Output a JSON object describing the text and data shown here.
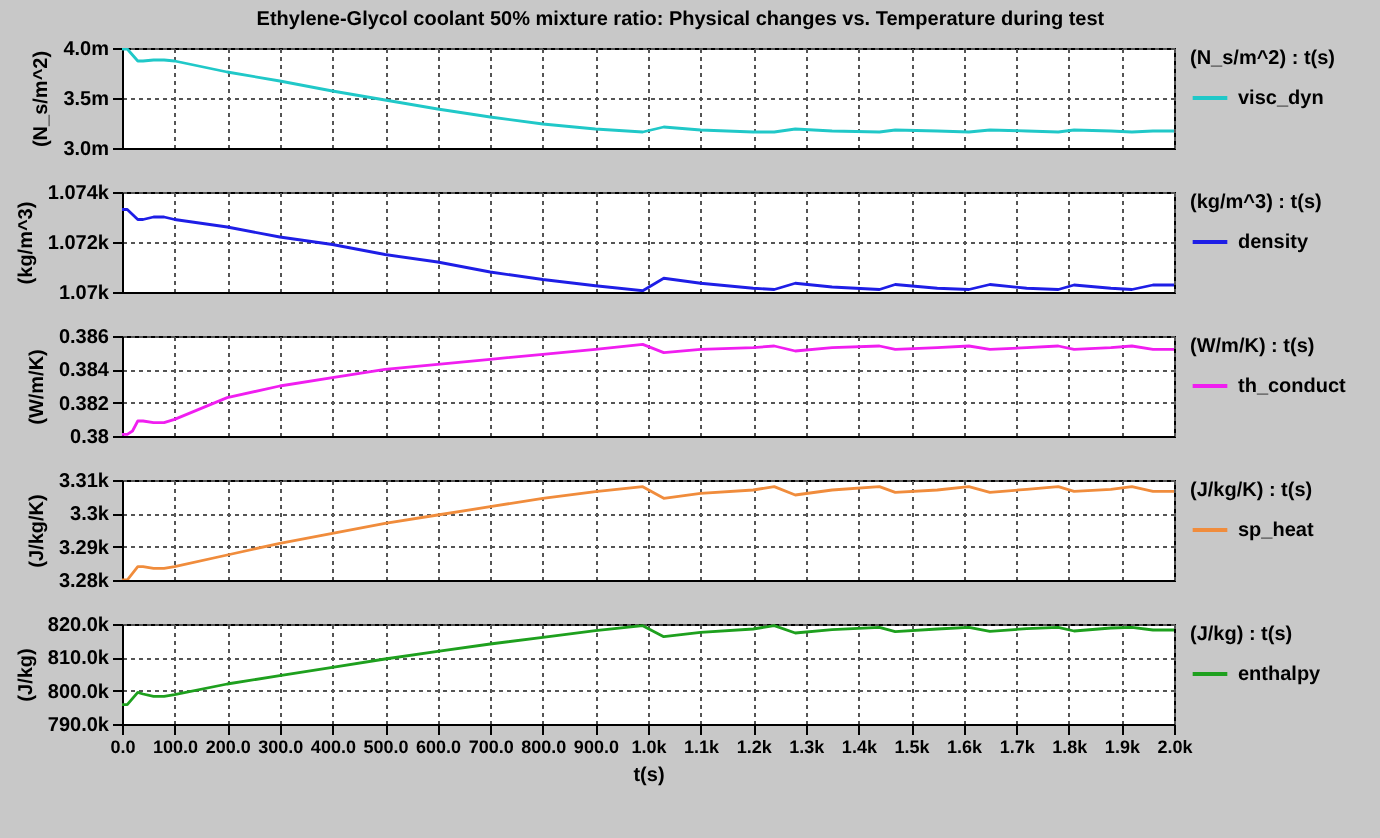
{
  "chart_data": [
    {
      "type": "line",
      "title": "Ethylene-Glycol coolant 50% mixture ratio: Physical changes vs. Temperature during test",
      "ylabel": "(N_s/m^2)",
      "legend_title": "(N_s/m^2) : t(s)",
      "legend": "right",
      "grid": true,
      "tick_labels": "y",
      "x": [
        0,
        10,
        30,
        40,
        60,
        80,
        100,
        200,
        300,
        400,
        500,
        600,
        700,
        800,
        900,
        990,
        1030,
        1100,
        1200,
        1240,
        1280,
        1350,
        1440,
        1470,
        1550,
        1610,
        1650,
        1720,
        1780,
        1810,
        1880,
        1920,
        1960,
        2000
      ],
      "xlim": [
        0,
        2000
      ],
      "xticks": [
        {
          "value": 0,
          "label": null
        },
        {
          "value": 100,
          "label": null
        },
        {
          "value": 200,
          "label": null
        },
        {
          "value": 300,
          "label": null
        },
        {
          "value": 400,
          "label": null
        },
        {
          "value": 500,
          "label": null
        },
        {
          "value": 600,
          "label": null
        },
        {
          "value": 700,
          "label": null
        },
        {
          "value": 800,
          "label": null
        },
        {
          "value": 900,
          "label": null
        },
        {
          "value": 1000,
          "label": null
        },
        {
          "value": 1100,
          "label": null
        },
        {
          "value": 1200,
          "label": null
        },
        {
          "value": 1300,
          "label": null
        },
        {
          "value": 1400,
          "label": null
        },
        {
          "value": 1500,
          "label": null
        },
        {
          "value": 1600,
          "label": null
        },
        {
          "value": 1700,
          "label": null
        },
        {
          "value": 1800,
          "label": null
        },
        {
          "value": 1900,
          "label": null
        },
        {
          "value": 2000,
          "label": null
        }
      ],
      "ylim": [
        3.0,
        4.0
      ],
      "yticks": [
        {
          "value": 3.0,
          "label": "3.0m"
        },
        {
          "value": 3.5,
          "label": "3.5m"
        },
        {
          "value": 4.0,
          "label": "4.0m"
        }
      ],
      "series": [
        {
          "name": "visc_dyn",
          "color": "#20c8c8",
          "values": [
            3.99,
            3.99,
            3.87,
            3.87,
            3.88,
            3.88,
            3.87,
            3.76,
            3.67,
            3.57,
            3.48,
            3.39,
            3.31,
            3.24,
            3.19,
            3.16,
            3.21,
            3.18,
            3.16,
            3.16,
            3.19,
            3.17,
            3.16,
            3.18,
            3.17,
            3.16,
            3.18,
            3.17,
            3.16,
            3.18,
            3.17,
            3.16,
            3.17,
            3.17
          ]
        }
      ]
    },
    {
      "type": "line",
      "ylabel": "(kg/m^3)",
      "legend_title": "(kg/m^3) : t(s)",
      "legend": "right",
      "grid": true,
      "tick_labels": "y",
      "x": [
        0,
        10,
        30,
        40,
        60,
        80,
        100,
        200,
        300,
        400,
        500,
        600,
        700,
        800,
        900,
        990,
        1030,
        1100,
        1200,
        1240,
        1280,
        1350,
        1440,
        1470,
        1550,
        1610,
        1650,
        1720,
        1780,
        1810,
        1880,
        1920,
        1960,
        2000
      ],
      "xlim": [
        0,
        2000
      ],
      "xticks": [
        {
          "value": 0,
          "label": null
        },
        {
          "value": 100,
          "label": null
        },
        {
          "value": 200,
          "label": null
        },
        {
          "value": 300,
          "label": null
        },
        {
          "value": 400,
          "label": null
        },
        {
          "value": 500,
          "label": null
        },
        {
          "value": 600,
          "label": null
        },
        {
          "value": 700,
          "label": null
        },
        {
          "value": 800,
          "label": null
        },
        {
          "value": 900,
          "label": null
        },
        {
          "value": 1000,
          "label": null
        },
        {
          "value": 1100,
          "label": null
        },
        {
          "value": 1200,
          "label": null
        },
        {
          "value": 1300,
          "label": null
        },
        {
          "value": 1400,
          "label": null
        },
        {
          "value": 1500,
          "label": null
        },
        {
          "value": 1600,
          "label": null
        },
        {
          "value": 1700,
          "label": null
        },
        {
          "value": 1800,
          "label": null
        },
        {
          "value": 1900,
          "label": null
        },
        {
          "value": 2000,
          "label": null
        }
      ],
      "ylim": [
        1070,
        1074
      ],
      "yticks": [
        {
          "value": 1070,
          "label": "1.07k"
        },
        {
          "value": 1072,
          "label": "1.072k"
        },
        {
          "value": 1074,
          "label": "1.074k"
        }
      ],
      "series": [
        {
          "name": "density",
          "color": "#1e1ee6",
          "values": [
            1073.3,
            1073.3,
            1072.9,
            1072.9,
            1073.0,
            1073.0,
            1072.9,
            1072.6,
            1072.2,
            1071.9,
            1071.5,
            1071.2,
            1070.8,
            1070.5,
            1070.25,
            1070.05,
            1070.55,
            1070.35,
            1070.15,
            1070.1,
            1070.35,
            1070.2,
            1070.1,
            1070.3,
            1070.15,
            1070.1,
            1070.3,
            1070.15,
            1070.1,
            1070.28,
            1070.15,
            1070.1,
            1070.28,
            1070.28
          ]
        }
      ]
    },
    {
      "type": "line",
      "ylabel": "(W/m/K)",
      "legend_title": "(W/m/K) : t(s)",
      "legend": "right",
      "grid": true,
      "tick_labels": "y",
      "x": [
        0,
        10,
        20,
        30,
        40,
        60,
        80,
        100,
        200,
        300,
        400,
        500,
        600,
        700,
        800,
        900,
        990,
        1030,
        1100,
        1200,
        1240,
        1280,
        1350,
        1440,
        1470,
        1550,
        1610,
        1650,
        1720,
        1780,
        1810,
        1880,
        1920,
        1960,
        2000
      ],
      "xlim": [
        0,
        2000
      ],
      "xticks": [
        {
          "value": 0,
          "label": null
        },
        {
          "value": 100,
          "label": null
        },
        {
          "value": 200,
          "label": null
        },
        {
          "value": 300,
          "label": null
        },
        {
          "value": 400,
          "label": null
        },
        {
          "value": 500,
          "label": null
        },
        {
          "value": 600,
          "label": null
        },
        {
          "value": 700,
          "label": null
        },
        {
          "value": 800,
          "label": null
        },
        {
          "value": 900,
          "label": null
        },
        {
          "value": 1000,
          "label": null
        },
        {
          "value": 1100,
          "label": null
        },
        {
          "value": 1200,
          "label": null
        },
        {
          "value": 1300,
          "label": null
        },
        {
          "value": 1400,
          "label": null
        },
        {
          "value": 1500,
          "label": null
        },
        {
          "value": 1600,
          "label": null
        },
        {
          "value": 1700,
          "label": null
        },
        {
          "value": 1800,
          "label": null
        },
        {
          "value": 1900,
          "label": null
        },
        {
          "value": 2000,
          "label": null
        }
      ],
      "ylim": [
        0.38,
        0.386
      ],
      "yticks": [
        0.38,
        0.382,
        0.384,
        0.386
      ],
      "series": [
        {
          "name": "th_conduct",
          "color": "#f01ef0",
          "values": [
            0.3801,
            0.3801,
            0.3803,
            0.3809,
            0.3809,
            0.3808,
            0.3808,
            0.381,
            0.3823,
            0.383,
            0.3835,
            0.384,
            0.3843,
            0.3846,
            0.3849,
            0.3852,
            0.3855,
            0.385,
            0.3852,
            0.3853,
            0.3854,
            0.3851,
            0.3853,
            0.3854,
            0.3852,
            0.3853,
            0.3854,
            0.3852,
            0.3853,
            0.3854,
            0.3852,
            0.3853,
            0.3854,
            0.3852,
            0.3852
          ]
        }
      ]
    },
    {
      "type": "line",
      "ylabel": "(J/kg/K)",
      "legend_title": "(J/kg/K) : t(s)",
      "legend": "right",
      "grid": true,
      "tick_labels": "y",
      "x": [
        0,
        10,
        30,
        40,
        60,
        80,
        100,
        200,
        300,
        400,
        500,
        600,
        700,
        800,
        900,
        990,
        1030,
        1100,
        1200,
        1240,
        1280,
        1350,
        1440,
        1470,
        1550,
        1610,
        1650,
        1720,
        1780,
        1810,
        1880,
        1920,
        1960,
        2000
      ],
      "xlim": [
        0,
        2000
      ],
      "xticks": [
        {
          "value": 0,
          "label": null
        },
        {
          "value": 100,
          "label": null
        },
        {
          "value": 200,
          "label": null
        },
        {
          "value": 300,
          "label": null
        },
        {
          "value": 400,
          "label": null
        },
        {
          "value": 500,
          "label": null
        },
        {
          "value": 600,
          "label": null
        },
        {
          "value": 700,
          "label": null
        },
        {
          "value": 800,
          "label": null
        },
        {
          "value": 900,
          "label": null
        },
        {
          "value": 1000,
          "label": null
        },
        {
          "value": 1100,
          "label": null
        },
        {
          "value": 1200,
          "label": null
        },
        {
          "value": 1300,
          "label": null
        },
        {
          "value": 1400,
          "label": null
        },
        {
          "value": 1500,
          "label": null
        },
        {
          "value": 1600,
          "label": null
        },
        {
          "value": 1700,
          "label": null
        },
        {
          "value": 1800,
          "label": null
        },
        {
          "value": 1900,
          "label": null
        },
        {
          "value": 2000,
          "label": null
        }
      ],
      "ylim": [
        3280,
        3310
      ],
      "yticks": [
        {
          "value": 3280,
          "label": "3.28k"
        },
        {
          "value": 3290,
          "label": "3.29k"
        },
        {
          "value": 3300,
          "label": "3.3k"
        },
        {
          "value": 3310,
          "label": "3.31k"
        }
      ],
      "series": [
        {
          "name": "sp_heat",
          "color": "#f08c3c",
          "values": [
            3280,
            3280,
            3284,
            3284,
            3283.5,
            3283.5,
            3284,
            3287.5,
            3291,
            3294,
            3297,
            3299.5,
            3302,
            3304.5,
            3306.5,
            3308,
            3304.5,
            3306,
            3307,
            3308,
            3305.5,
            3307,
            3308,
            3306.3,
            3307,
            3308,
            3306.3,
            3307.2,
            3308,
            3306.6,
            3307.2,
            3308,
            3306.6,
            3306.6
          ]
        }
      ]
    },
    {
      "type": "line",
      "xlabel": "t(s)",
      "ylabel": "(J/kg)",
      "legend_title": "(J/kg) : t(s)",
      "legend": "right",
      "grid": true,
      "x": [
        0,
        10,
        30,
        40,
        60,
        80,
        100,
        200,
        300,
        400,
        500,
        600,
        700,
        800,
        900,
        990,
        1030,
        1100,
        1200,
        1240,
        1280,
        1350,
        1440,
        1470,
        1550,
        1610,
        1650,
        1720,
        1780,
        1810,
        1880,
        1920,
        1960,
        2000
      ],
      "xlim": [
        0,
        2000
      ],
      "xticks": [
        {
          "value": 0,
          "label": "0.0"
        },
        {
          "value": 100,
          "label": "100.0"
        },
        {
          "value": 200,
          "label": "200.0"
        },
        {
          "value": 300,
          "label": "300.0"
        },
        {
          "value": 400,
          "label": "400.0"
        },
        {
          "value": 500,
          "label": "500.0"
        },
        {
          "value": 600,
          "label": "600.0"
        },
        {
          "value": 700,
          "label": "700.0"
        },
        {
          "value": 800,
          "label": "800.0"
        },
        {
          "value": 900,
          "label": "900.0"
        },
        {
          "value": 1000,
          "label": "1.0k"
        },
        {
          "value": 1100,
          "label": "1.1k"
        },
        {
          "value": 1200,
          "label": "1.2k"
        },
        {
          "value": 1300,
          "label": "1.3k"
        },
        {
          "value": 1400,
          "label": "1.4k"
        },
        {
          "value": 1500,
          "label": "1.5k"
        },
        {
          "value": 1600,
          "label": "1.6k"
        },
        {
          "value": 1700,
          "label": "1.7k"
        },
        {
          "value": 1800,
          "label": "1.8k"
        },
        {
          "value": 1900,
          "label": "1.9k"
        },
        {
          "value": 2000,
          "label": "2.0k"
        }
      ],
      "ylim": [
        790000,
        820000
      ],
      "yticks": [
        {
          "value": 790000,
          "label": "790.0k"
        },
        {
          "value": 800000,
          "label": "800.0k"
        },
        {
          "value": 810000,
          "label": "810.0k"
        },
        {
          "value": 820000,
          "label": "820.0k"
        }
      ],
      "series": [
        {
          "name": "enthalpy",
          "color": "#1ea01e",
          "values": [
            795800,
            795800,
            799500,
            799000,
            798300,
            798300,
            798800,
            802000,
            804500,
            807000,
            809500,
            811800,
            814000,
            816000,
            818000,
            819500,
            816200,
            817500,
            818500,
            819500,
            817300,
            818300,
            819000,
            817700,
            818500,
            819000,
            817800,
            818600,
            819000,
            817900,
            818800,
            819000,
            818200,
            818200
          ]
        }
      ]
    }
  ]
}
